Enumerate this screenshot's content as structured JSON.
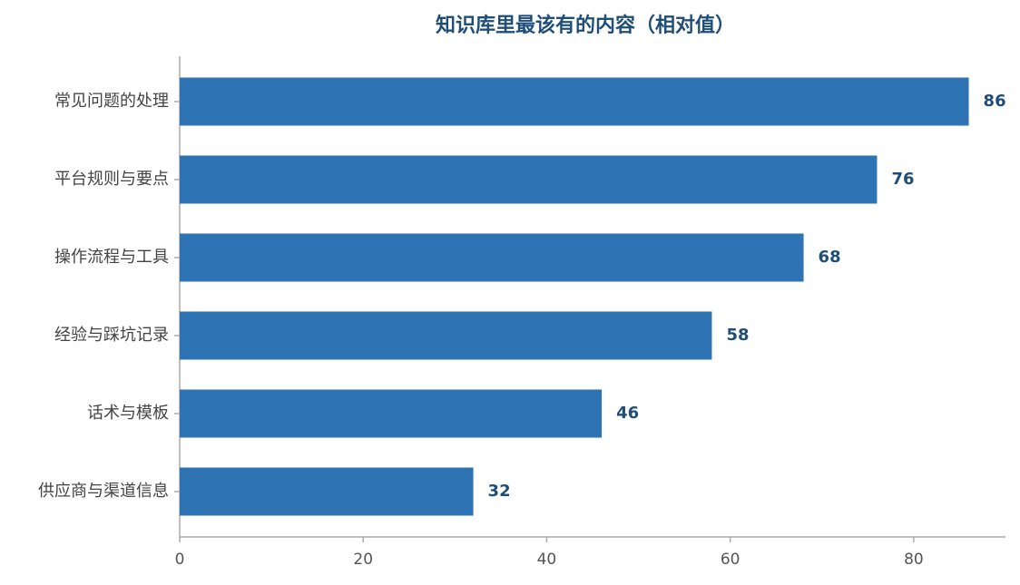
{
  "chart_data": {
    "type": "barh",
    "title": "知识库里最该有的内容（相对值）",
    "categories": [
      "常见问题的处理",
      "平台规则与要点",
      "操作流程与工具",
      "经验与踩坑记录",
      "话术与模板",
      "供应商与渠道信息"
    ],
    "values": [
      86,
      76,
      68,
      58,
      46,
      32
    ],
    "color": "#2e73b3",
    "xlim": [
      0,
      90
    ],
    "xticks": [
      0,
      20,
      40,
      60,
      80
    ],
    "grid": false
  }
}
